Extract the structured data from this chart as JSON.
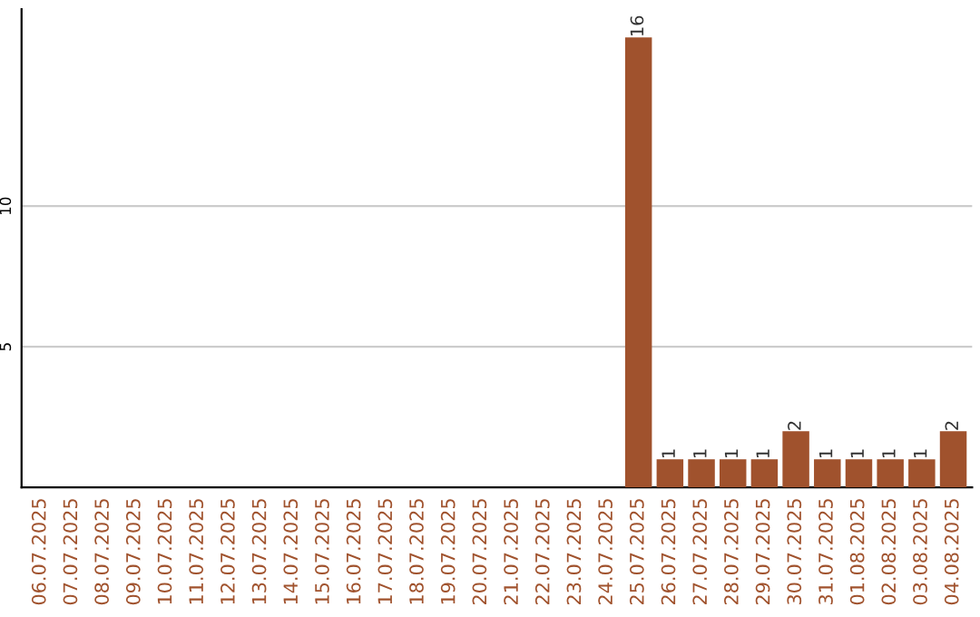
{
  "chart_data": {
    "type": "bar",
    "categories": [
      "06.07.2025",
      "07.07.2025",
      "08.07.2025",
      "09.07.2025",
      "10.07.2025",
      "11.07.2025",
      "12.07.2025",
      "13.07.2025",
      "14.07.2025",
      "15.07.2025",
      "16.07.2025",
      "17.07.2025",
      "18.07.2025",
      "19.07.2025",
      "20.07.2025",
      "21.07.2025",
      "22.07.2025",
      "23.07.2025",
      "24.07.2025",
      "25.07.2025",
      "26.07.2025",
      "27.07.2025",
      "28.07.2025",
      "29.07.2025",
      "30.07.2025",
      "31.07.2025",
      "01.08.2025",
      "02.08.2025",
      "03.08.2025",
      "04.08.2025"
    ],
    "values": [
      0,
      0,
      0,
      0,
      0,
      0,
      0,
      0,
      0,
      0,
      0,
      0,
      0,
      0,
      0,
      0,
      0,
      0,
      0,
      16,
      1,
      1,
      1,
      1,
      2,
      1,
      1,
      1,
      1,
      2
    ],
    "value_labels": [
      null,
      null,
      null,
      null,
      null,
      null,
      null,
      null,
      null,
      null,
      null,
      null,
      null,
      null,
      null,
      null,
      null,
      null,
      null,
      "16",
      "1",
      "1",
      "1",
      "1",
      "2",
      "1",
      "1",
      "1",
      "1",
      "2"
    ],
    "color": "#a0522d",
    "ylim": [
      0,
      17
    ],
    "yticks": [
      5,
      10
    ],
    "grid": "y"
  }
}
